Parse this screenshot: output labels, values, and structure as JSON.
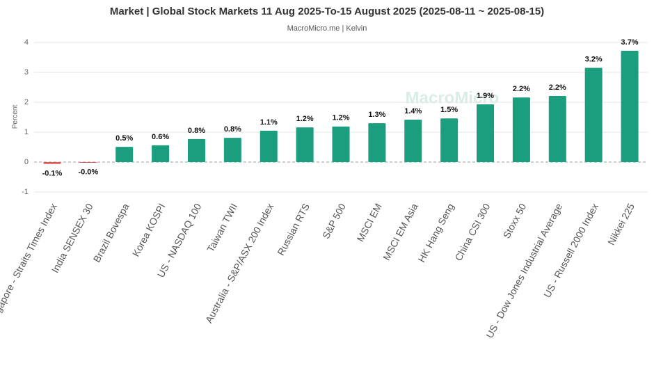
{
  "chart_data": {
    "type": "bar",
    "title": "Market | Global Stock Markets 11 Aug 2025-To-15 August 2025 (2025-08-11 ~ 2025-08-15)",
    "subtitle": "MacroMicro.me | Kelvin",
    "watermark": "MacroMicro",
    "y_label": "Percent",
    "categories": [
      "Singapore - Straits Times Index",
      "India SENSEX 30",
      "Brazil Bovespa",
      "Korea KOSPI",
      "US - NASDAQ 100",
      "Taiwan TWII",
      "Australia - S&P/ASX 200 Index",
      "Russian RTS",
      "S&P 500",
      "MSCI EM",
      "MSCI EM Asia",
      "HK Hang Seng",
      "China CSI 300",
      "Stoxx 50",
      "US - Dow Jones Industrial Average",
      "US - Russell 2000 Index",
      "Nikkei 225"
    ],
    "values": [
      -0.06,
      -0.01,
      0.51,
      0.56,
      0.77,
      0.81,
      1.05,
      1.16,
      1.19,
      1.3,
      1.42,
      1.46,
      1.93,
      2.16,
      2.21,
      3.15,
      3.72
    ],
    "value_labels": [
      "-0.1%",
      "-0.0%",
      "0.5%",
      "0.6%",
      "0.8%",
      "0.8%",
      "1.1%",
      "1.2%",
      "1.2%",
      "1.3%",
      "1.4%",
      "1.5%",
      "1.9%",
      "2.2%",
      "2.2%",
      "3.2%",
      "3.7%"
    ],
    "color": "#1b9e7e",
    "negative_color": "#e0544f",
    "ylim": [
      -1,
      4
    ],
    "yticks": [
      -1,
      0,
      1,
      2,
      3,
      4
    ],
    "grid": true
  }
}
